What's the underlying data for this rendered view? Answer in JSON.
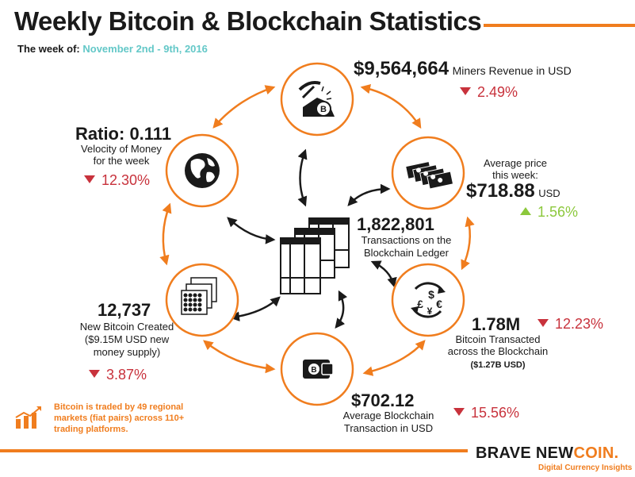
{
  "title": "Weekly Bitcoin & Blockchain Statistics",
  "week_label": "The week of:",
  "week_dates": "November 2nd - 9th, 2016",
  "miners": {
    "value": "$9,564,664",
    "label": "Miners Revenue in USD",
    "change": "2.49%",
    "direction": "down"
  },
  "price": {
    "label_line1": "Average price",
    "label_line2": "this week:",
    "value": "$718.88",
    "unit": "USD",
    "change": "1.56%",
    "direction": "up"
  },
  "transacted": {
    "value": "1.78M",
    "change": "12.23%",
    "direction": "down",
    "label_line1": "Bitcoin Transacted",
    "label_line2": "across the Blockchain",
    "usd": "($1.27B USD)"
  },
  "avg_tx": {
    "value": "$702.12",
    "label_line1": "Average Blockchain",
    "label_line2": "Transaction in USD",
    "change": "15.56%",
    "direction": "down"
  },
  "new_btc": {
    "value": "12,737",
    "label_line1": "New Bitcoin Created",
    "label_line2": "($9.15M USD new",
    "label_line3": "money supply)",
    "change": "3.87%",
    "direction": "down"
  },
  "velocity": {
    "value": "Ratio: 0.111",
    "label_line1": "Velocity of Money",
    "label_line2": "for the week",
    "change": "12.30%",
    "direction": "down"
  },
  "transactions": {
    "value": "1,822,801",
    "label_line1": "Transactions on the",
    "label_line2": "Blockchain Ledger"
  },
  "note": "Bitcoin is traded by 49 regional markets (fiat pairs) across 110+ trading platforms.",
  "brand": {
    "part1": "BRAVE NEW",
    "part2": "COIN.",
    "tagline": "Digital Currency Insights"
  },
  "colors": {
    "accent": "#f07d1e",
    "down": "#c8323c",
    "up": "#8cc83c",
    "teal": "#64c8c8"
  },
  "icons": [
    "pickaxe-icon",
    "banknotes-icon",
    "currency-exchange-icon",
    "wallet-icon",
    "coin-stacks-icon",
    "globe-icon",
    "ledger-icon",
    "growth-chart-icon"
  ]
}
